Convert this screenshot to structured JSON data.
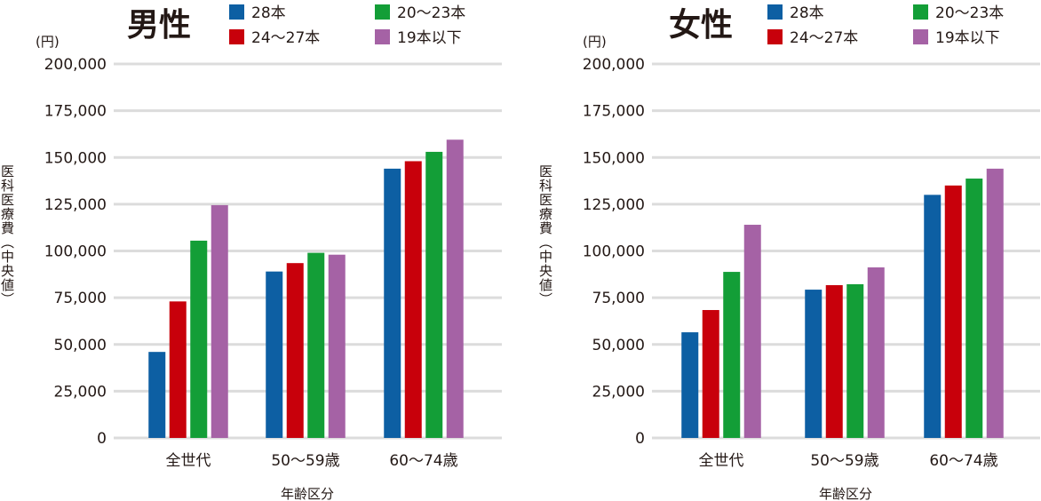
{
  "chart_data": [
    {
      "type": "bar",
      "title": "男性",
      "unit": "(円)",
      "xlabel": "年齢区分",
      "ylabel": "医科医療費（中央値）",
      "ylim": [
        0,
        200000
      ],
      "yticks": [
        "0",
        "25,000",
        "50,000",
        "75,000",
        "100,000",
        "125,000",
        "150,000",
        "175,000",
        "200,000"
      ],
      "grid": true,
      "legend": "top",
      "categories": [
        "全世代",
        "50〜59歳",
        "60〜74歳"
      ],
      "series": [
        {
          "name": "28本",
          "color": "#0d5fa3",
          "values": [
            46000,
            89000,
            144000
          ]
        },
        {
          "name": "24〜27本",
          "color": "#c8000b",
          "values": [
            73000,
            93500,
            148000
          ]
        },
        {
          "name": "20〜23本",
          "color": "#139e37",
          "values": [
            105500,
            99000,
            153000
          ]
        },
        {
          "name": "19本以下",
          "color": "#a562a5",
          "values": [
            124500,
            98000,
            159500
          ]
        }
      ]
    },
    {
      "type": "bar",
      "title": "女性",
      "unit": "(円)",
      "xlabel": "年齢区分",
      "ylabel": "医科医療費（中央値）",
      "ylim": [
        0,
        200000
      ],
      "yticks": [
        "0",
        "25,000",
        "50,000",
        "75,000",
        "100,000",
        "125,000",
        "150,000",
        "175,000",
        "200,000"
      ],
      "grid": true,
      "legend": "top",
      "categories": [
        "全世代",
        "50〜59歳",
        "60〜74歳"
      ],
      "series": [
        {
          "name": "28本",
          "color": "#0d5fa3",
          "values": [
            56500,
            79300,
            130000
          ]
        },
        {
          "name": "24〜27本",
          "color": "#c8000b",
          "values": [
            68400,
            81700,
            135000
          ]
        },
        {
          "name": "20〜23本",
          "color": "#139e37",
          "values": [
            88800,
            82200,
            138700
          ]
        },
        {
          "name": "19本以下",
          "color": "#a562a5",
          "values": [
            114000,
            91200,
            144000
          ]
        }
      ]
    }
  ]
}
